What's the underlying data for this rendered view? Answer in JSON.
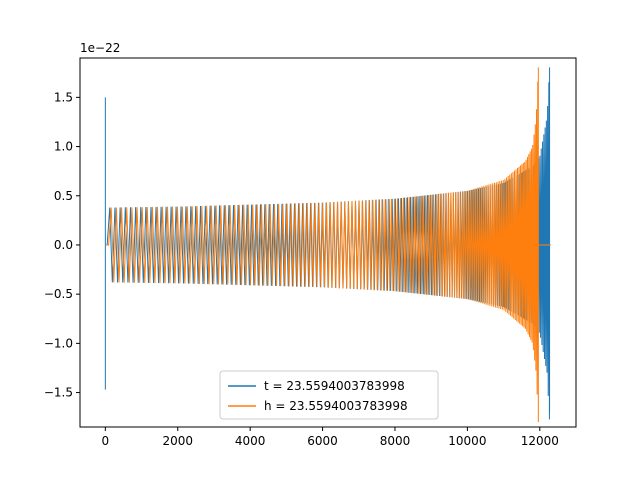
{
  "chart_data": {
    "type": "line",
    "title": "",
    "xlabel": "",
    "ylabel": "",
    "y_scale_label": "1e−22",
    "xlim": [
      -700,
      13000
    ],
    "ylim": [
      -1.85,
      1.9
    ],
    "x_ticks": [
      0,
      2000,
      4000,
      6000,
      8000,
      10000,
      12000
    ],
    "y_ticks": [
      -1.5,
      -1.0,
      -0.5,
      0.0,
      0.5,
      1.0,
      1.5
    ],
    "x_tick_labels": [
      "0",
      "2000",
      "4000",
      "6000",
      "8000",
      "10000",
      "12000"
    ],
    "y_tick_labels": [
      "−1.5",
      "−1.0",
      "−0.5",
      "0.0",
      "0.5",
      "1.0",
      "1.5"
    ],
    "grid": false,
    "legend_position": "lower-center",
    "series": [
      {
        "name": "t = 23.5594003783998",
        "color": "#1f77b4",
        "kind": "chirp",
        "start_spike": {
          "x": 0,
          "max": 1.5,
          "min": -1.47
        },
        "envelope": {
          "x": [
            50,
            2000,
            4000,
            6000,
            8000,
            10000,
            11000,
            11800,
            12000,
            12200,
            12270
          ],
          "amp": [
            0.38,
            0.39,
            0.41,
            0.43,
            0.47,
            0.55,
            0.63,
            0.8,
            0.9,
            1.3,
            1.8
          ]
        },
        "end_x": 12270,
        "flat_after": [
          12270,
          12300
        ]
      },
      {
        "name": "h = 23.5594003783998",
        "color": "#ff7f0e",
        "kind": "chirp",
        "start_flat": [
          0,
          90
        ],
        "envelope": {
          "x": [
            90,
            2000,
            4000,
            6000,
            8000,
            10000,
            11000,
            11600,
            11800,
            11900,
            11960
          ],
          "amp": [
            0.38,
            0.39,
            0.41,
            0.43,
            0.47,
            0.55,
            0.66,
            0.85,
            1.0,
            1.3,
            1.8
          ]
        },
        "end_x": 11960,
        "flat_after": [
          11960,
          12300
        ]
      }
    ]
  }
}
